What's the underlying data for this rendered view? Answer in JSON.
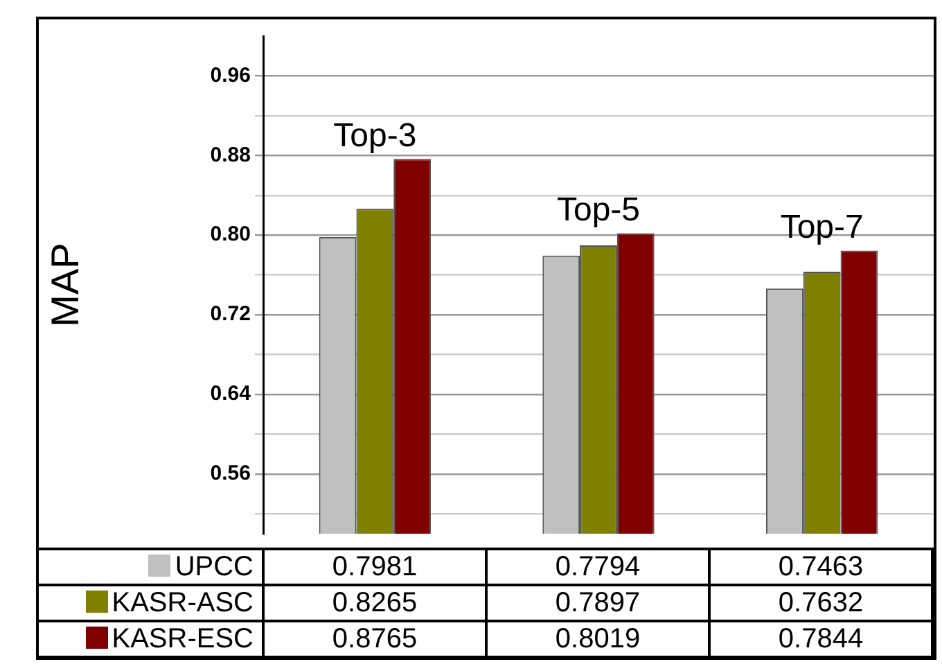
{
  "chart_data": {
    "type": "bar",
    "ylabel": "MAP",
    "categories": [
      "Top-3",
      "Top-5",
      "Top-7"
    ],
    "series": [
      {
        "name": "UPCC",
        "color": "#c0c0c0",
        "values": [
          0.7981,
          0.7794,
          0.7463
        ]
      },
      {
        "name": "KASR-ASC",
        "color": "#808000",
        "values": [
          0.8265,
          0.7897,
          0.7632
        ]
      },
      {
        "name": "KASR-ESC",
        "color": "#800000",
        "values": [
          0.8765,
          0.8019,
          0.7844
        ]
      }
    ],
    "ylim": [
      0.5,
      1.0
    ],
    "yticks": [
      {
        "value": 0.52,
        "label": null
      },
      0.56,
      {
        "value": 0.6,
        "label": null
      },
      0.64,
      {
        "value": 0.68,
        "label": null
      },
      0.72,
      {
        "value": 0.76,
        "label": null
      },
      {
        "value": 0.8,
        "label": "0.80"
      },
      {
        "value": 0.84,
        "label": null
      },
      0.88,
      {
        "value": 0.92,
        "label": null
      },
      0.96
    ],
    "grid": "y",
    "legend": "bottom",
    "data_labels": true
  }
}
